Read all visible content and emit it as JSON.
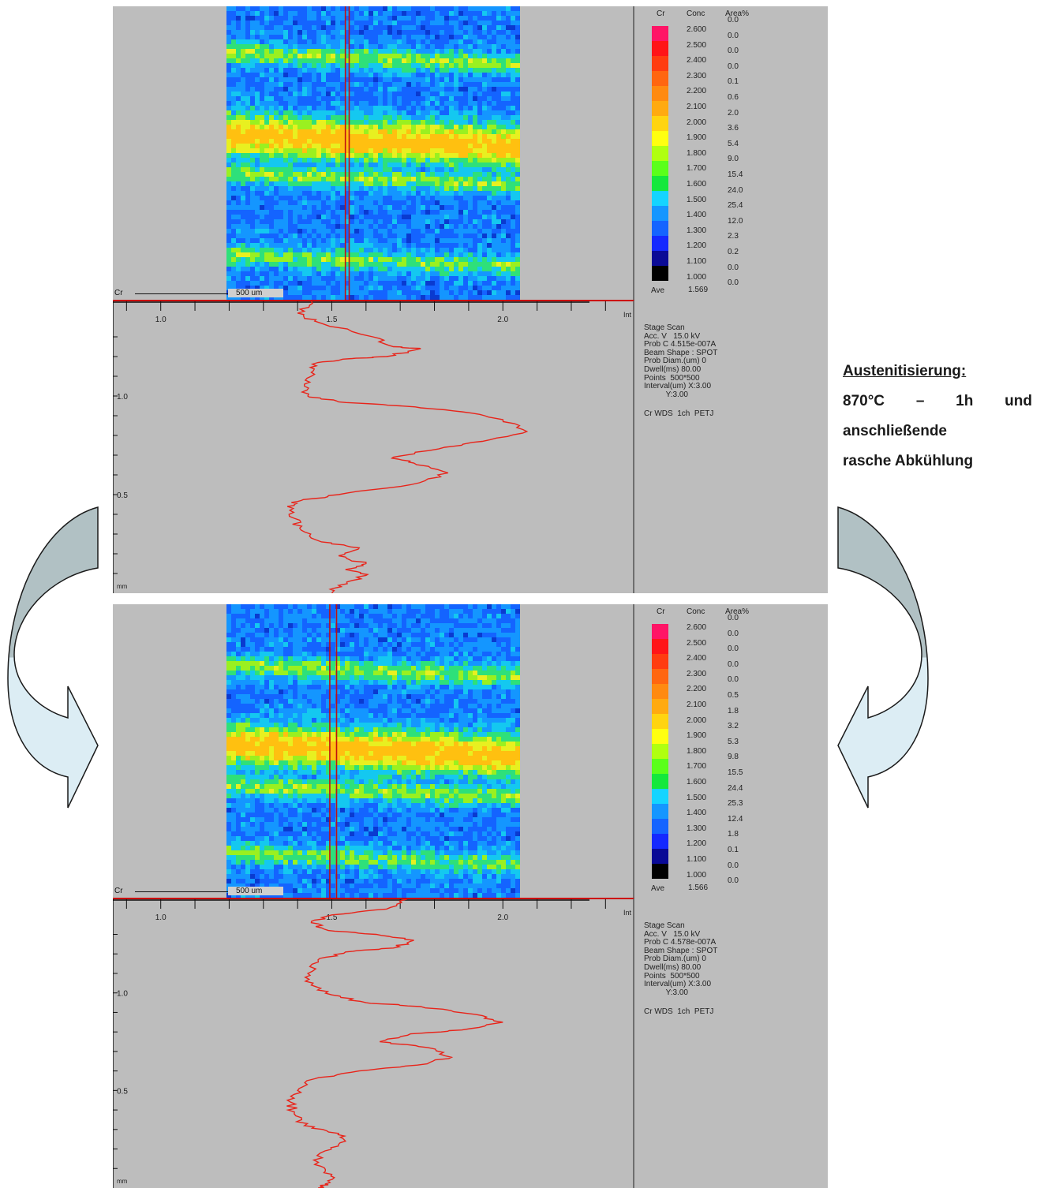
{
  "side_note": {
    "heading": "Austenitisierung:",
    "line1_parts": [
      "870°C",
      "–",
      "1h",
      "und"
    ],
    "line2": "anschließende",
    "line3": "rasche Abkühlung"
  },
  "colors": {
    "profile_line": "#e8241a",
    "arrow_top": "#b1c1c4",
    "arrow_bottom": "#dcedf4",
    "panel_bg": "#bdbdbd"
  },
  "panels": [
    {
      "element": "Cr",
      "scalebar_label": "500 um",
      "legend": {
        "headers": [
          "Cr",
          "Conc",
          "Area%"
        ],
        "levels": [
          {
            "conc": "2.600",
            "area": "0.0",
            "color": "#ff1466"
          },
          {
            "conc": "2.500",
            "area": "0.0",
            "color": "#ff1418"
          },
          {
            "conc": "2.400",
            "area": "0.0",
            "color": "#ff3c10"
          },
          {
            "conc": "2.300",
            "area": "0.0",
            "color": "#ff6610"
          },
          {
            "conc": "2.200",
            "area": "0.1",
            "color": "#ff8a10"
          },
          {
            "conc": "2.100",
            "area": "0.6",
            "color": "#ffaa10"
          },
          {
            "conc": "2.000",
            "area": "2.0",
            "color": "#ffd410"
          },
          {
            "conc": "1.900",
            "area": "3.6",
            "color": "#ffff10"
          },
          {
            "conc": "1.800",
            "area": "5.4",
            "color": "#b0ff10"
          },
          {
            "conc": "1.700",
            "area": "9.0",
            "color": "#5aff1a"
          },
          {
            "conc": "1.600",
            "area": "15.4",
            "color": "#14e83c"
          },
          {
            "conc": "1.500",
            "area": "24.0",
            "color": "#14d4ff"
          },
          {
            "conc": "1.400",
            "area": "25.4",
            "color": "#1496ff"
          },
          {
            "conc": "1.300",
            "area": "12.0",
            "color": "#1464ff"
          },
          {
            "conc": "1.200",
            "area": "2.3",
            "color": "#1428ff"
          },
          {
            "conc": "1.100",
            "area": "0.2",
            "color": "#0a0a96"
          },
          {
            "conc": "1.000",
            "area": "0.0",
            "color": "#000000"
          }
        ],
        "last_area": "0.0",
        "ave_label": "Ave",
        "ave_value": "1.569"
      },
      "info_lines": [
        "Stage Scan",
        "Acc. V   15.0 kV",
        "Prob C 4.515e-007A",
        "Beam Shape : SPOT",
        "Prob Diam.(um) 0",
        "Dwell(ms) 80.00",
        "Points  500*500",
        "Interval(um) X:3.00",
        "          Y:3.00",
        "",
        "Cr WDS  1ch  PETJ"
      ],
      "map": {
        "yellow_band_center": 0.45,
        "green_bands": [
          0.17,
          0.58
        ],
        "line_x_frac": [
          0.405,
          0.418
        ]
      },
      "chart_data": {
        "type": "line",
        "x_label": "Int",
        "y_label": "mm",
        "x_ticks": [
          "1.0",
          "1.5",
          "2.0"
        ],
        "y_ticks": [
          "1.0",
          "0.5"
        ],
        "xlim": [
          0.86,
          2.38
        ],
        "ylim": [
          0.0,
          1.48
        ],
        "points": [
          [
            1.44,
            1.48
          ],
          [
            1.4,
            1.42
          ],
          [
            1.45,
            1.38
          ],
          [
            1.62,
            1.3
          ],
          [
            1.68,
            1.25
          ],
          [
            1.76,
            1.24
          ],
          [
            1.66,
            1.2
          ],
          [
            1.56,
            1.19
          ],
          [
            1.46,
            1.17
          ],
          [
            1.44,
            1.12
          ],
          [
            1.42,
            1.06
          ],
          [
            1.43,
            1.0
          ],
          [
            1.52,
            0.97
          ],
          [
            1.7,
            0.95
          ],
          [
            1.88,
            0.92
          ],
          [
            2.0,
            0.88
          ],
          [
            2.07,
            0.82
          ],
          [
            1.94,
            0.77
          ],
          [
            1.83,
            0.74
          ],
          [
            1.68,
            0.69
          ],
          [
            1.74,
            0.66
          ],
          [
            1.84,
            0.61
          ],
          [
            1.73,
            0.55
          ],
          [
            1.52,
            0.5
          ],
          [
            1.41,
            0.47
          ],
          [
            1.37,
            0.44
          ],
          [
            1.39,
            0.38
          ],
          [
            1.41,
            0.32
          ],
          [
            1.47,
            0.26
          ],
          [
            1.58,
            0.23
          ],
          [
            1.52,
            0.19
          ],
          [
            1.6,
            0.15
          ],
          [
            1.54,
            0.12
          ],
          [
            1.6,
            0.09
          ],
          [
            1.52,
            0.04
          ],
          [
            1.5,
            0.0
          ]
        ]
      }
    },
    {
      "element": "Cr",
      "scalebar_label": "500 um",
      "legend": {
        "headers": [
          "Cr",
          "Conc",
          "Area%"
        ],
        "levels": [
          {
            "conc": "2.600",
            "area": "0.0",
            "color": "#ff1466"
          },
          {
            "conc": "2.500",
            "area": "0.0",
            "color": "#ff1418"
          },
          {
            "conc": "2.400",
            "area": "0.0",
            "color": "#ff3c10"
          },
          {
            "conc": "2.300",
            "area": "0.0",
            "color": "#ff6610"
          },
          {
            "conc": "2.200",
            "area": "0.0",
            "color": "#ff8a10"
          },
          {
            "conc": "2.100",
            "area": "0.5",
            "color": "#ffaa10"
          },
          {
            "conc": "2.000",
            "area": "1.8",
            "color": "#ffd410"
          },
          {
            "conc": "1.900",
            "area": "3.2",
            "color": "#ffff10"
          },
          {
            "conc": "1.800",
            "area": "5.3",
            "color": "#b0ff10"
          },
          {
            "conc": "1.700",
            "area": "9.8",
            "color": "#5aff1a"
          },
          {
            "conc": "1.600",
            "area": "15.5",
            "color": "#14e83c"
          },
          {
            "conc": "1.500",
            "area": "24.4",
            "color": "#14d4ff"
          },
          {
            "conc": "1.400",
            "area": "25.3",
            "color": "#1496ff"
          },
          {
            "conc": "1.300",
            "area": "12.4",
            "color": "#1464ff"
          },
          {
            "conc": "1.200",
            "area": "1.8",
            "color": "#1428ff"
          },
          {
            "conc": "1.100",
            "area": "0.1",
            "color": "#0a0a96"
          },
          {
            "conc": "1.000",
            "area": "0.0",
            "color": "#000000"
          }
        ],
        "last_area": "0.0",
        "ave_label": "Ave",
        "ave_value": "1.566"
      },
      "info_lines": [
        "Stage Scan",
        "Acc. V   15.0 kV",
        "Prob C 4.578e-007A",
        "Beam Shape : SPOT",
        "Prob Diam.(um) 0",
        "Dwell(ms) 80.00",
        "Points  500*500",
        "Interval(um) X:3.00",
        "          Y:3.00",
        "",
        "Cr WDS  1ch  PETJ"
      ],
      "map": {
        "yellow_band_center": 0.49,
        "green_bands": [
          0.22,
          0.63
        ],
        "line_x_frac": [
          0.352,
          0.375
        ]
      },
      "chart_data": {
        "type": "line",
        "x_label": "Int",
        "y_label": "mm",
        "x_ticks": [
          "1.0",
          "1.5",
          "2.0"
        ],
        "y_ticks": [
          "1.0",
          "0.5"
        ],
        "xlim": [
          0.86,
          2.38
        ],
        "ylim": [
          0.0,
          1.48
        ],
        "points": [
          [
            1.72,
            1.48
          ],
          [
            1.66,
            1.43
          ],
          [
            1.5,
            1.4
          ],
          [
            1.44,
            1.36
          ],
          [
            1.49,
            1.32
          ],
          [
            1.63,
            1.3
          ],
          [
            1.74,
            1.27
          ],
          [
            1.68,
            1.23
          ],
          [
            1.54,
            1.21
          ],
          [
            1.46,
            1.17
          ],
          [
            1.43,
            1.1
          ],
          [
            1.44,
            1.04
          ],
          [
            1.5,
            0.99
          ],
          [
            1.6,
            0.95
          ],
          [
            1.76,
            0.93
          ],
          [
            1.92,
            0.89
          ],
          [
            2.0,
            0.85
          ],
          [
            1.88,
            0.81
          ],
          [
            1.73,
            0.79
          ],
          [
            1.64,
            0.75
          ],
          [
            1.78,
            0.72
          ],
          [
            1.85,
            0.67
          ],
          [
            1.75,
            0.63
          ],
          [
            1.58,
            0.6
          ],
          [
            1.45,
            0.56
          ],
          [
            1.4,
            0.5
          ],
          [
            1.38,
            0.44
          ],
          [
            1.39,
            0.38
          ],
          [
            1.42,
            0.32
          ],
          [
            1.52,
            0.28
          ],
          [
            1.54,
            0.24
          ],
          [
            1.48,
            0.19
          ],
          [
            1.45,
            0.12
          ],
          [
            1.5,
            0.07
          ],
          [
            1.48,
            0.02
          ],
          [
            1.46,
            0.0
          ]
        ]
      }
    }
  ]
}
